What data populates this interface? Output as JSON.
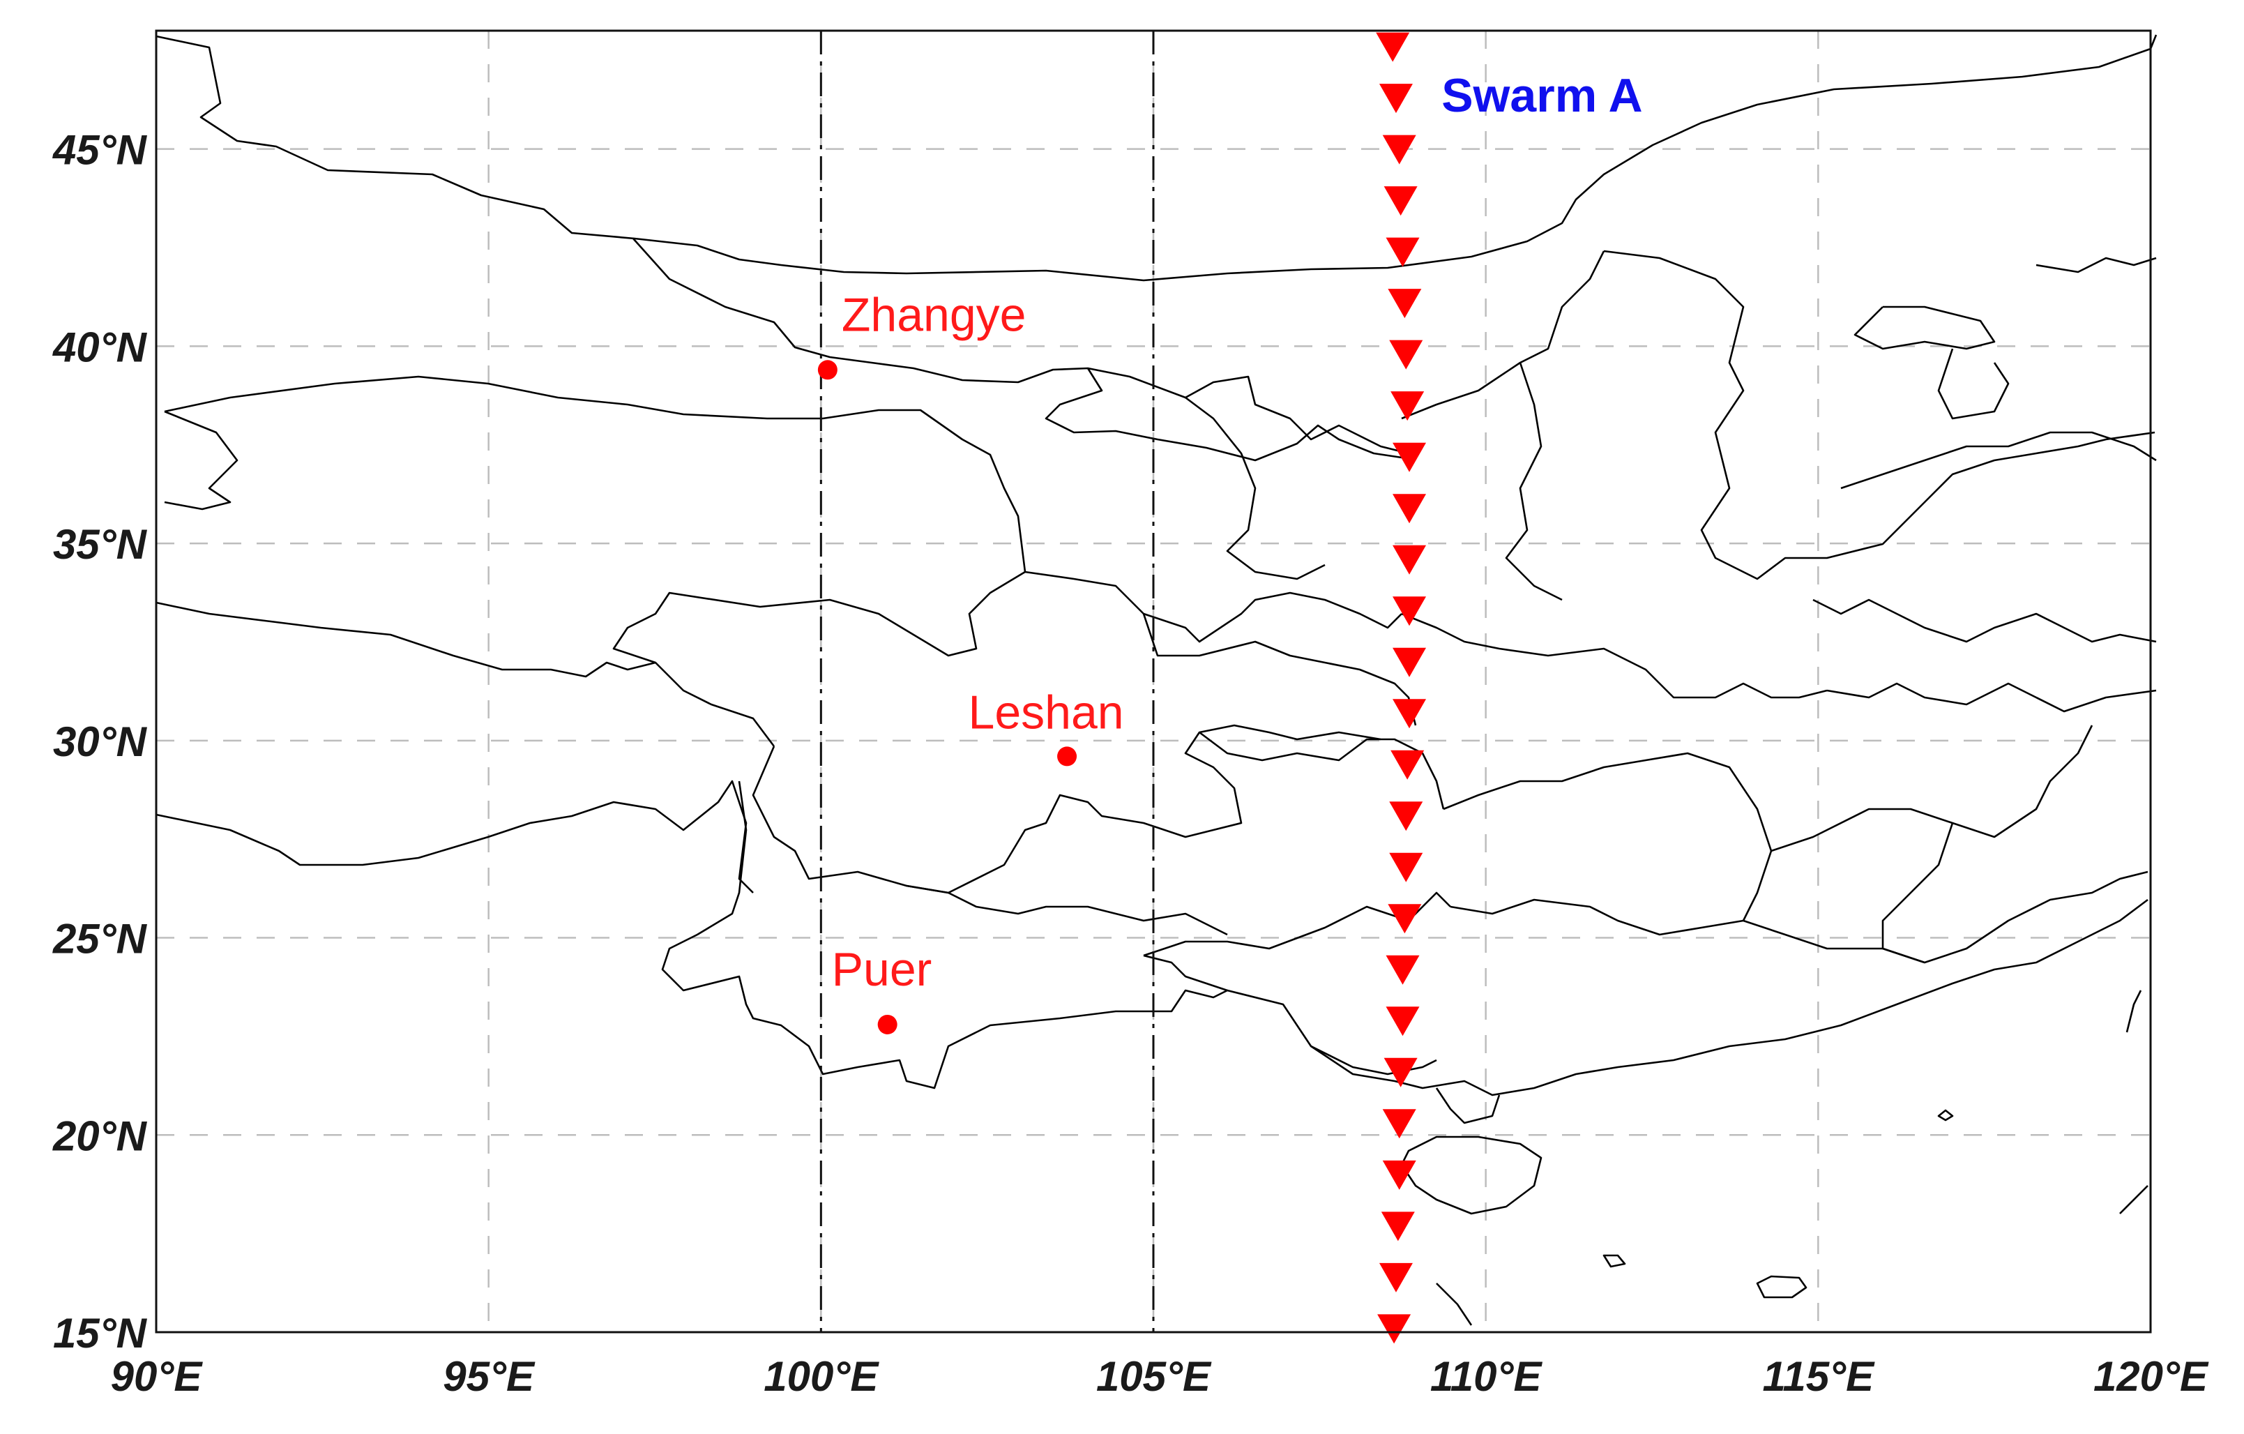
{
  "map": {
    "x_ticks": [
      "90°E",
      "95°E",
      "100°E",
      "105°E",
      "110°E",
      "115°E",
      "120°E"
    ],
    "y_ticks": [
      "15°N",
      "20°N",
      "25°N",
      "30°N",
      "35°N",
      "40°N",
      "45°N"
    ],
    "lon_range": [
      90,
      120
    ],
    "lat_range": [
      15,
      48
    ],
    "grid": true,
    "highlighted_meridians": [
      100,
      105
    ],
    "satellite": {
      "label": "Swarm A",
      "color": "#ff0000",
      "label_color": "#0000ff",
      "track": [
        {
          "lon": 108.6,
          "lat": 47.6
        },
        {
          "lon": 108.65,
          "lat": 46.3
        },
        {
          "lon": 108.7,
          "lat": 45.0
        },
        {
          "lon": 108.72,
          "lat": 43.7
        },
        {
          "lon": 108.75,
          "lat": 42.4
        },
        {
          "lon": 108.78,
          "lat": 41.1
        },
        {
          "lon": 108.8,
          "lat": 39.8
        },
        {
          "lon": 108.82,
          "lat": 38.5
        },
        {
          "lon": 108.85,
          "lat": 37.2
        },
        {
          "lon": 108.85,
          "lat": 35.9
        },
        {
          "lon": 108.85,
          "lat": 34.6
        },
        {
          "lon": 108.85,
          "lat": 33.3
        },
        {
          "lon": 108.85,
          "lat": 32.0
        },
        {
          "lon": 108.85,
          "lat": 30.7
        },
        {
          "lon": 108.82,
          "lat": 29.4
        },
        {
          "lon": 108.8,
          "lat": 28.1
        },
        {
          "lon": 108.8,
          "lat": 26.8
        },
        {
          "lon": 108.78,
          "lat": 25.5
        },
        {
          "lon": 108.75,
          "lat": 24.2
        },
        {
          "lon": 108.75,
          "lat": 22.9
        },
        {
          "lon": 108.72,
          "lat": 21.6
        },
        {
          "lon": 108.7,
          "lat": 20.3
        },
        {
          "lon": 108.7,
          "lat": 19.0
        },
        {
          "lon": 108.68,
          "lat": 17.7
        },
        {
          "lon": 108.65,
          "lat": 16.4
        },
        {
          "lon": 108.62,
          "lat": 15.1
        }
      ]
    },
    "stations": [
      {
        "name": "Zhangye",
        "lon": 100.1,
        "lat": 39.4,
        "color": "#ff0000"
      },
      {
        "name": "Leshan",
        "lon": 103.7,
        "lat": 29.6,
        "color": "#ff0000"
      },
      {
        "name": "Puer",
        "lon": 101.0,
        "lat": 22.8,
        "color": "#ff0000"
      }
    ]
  }
}
